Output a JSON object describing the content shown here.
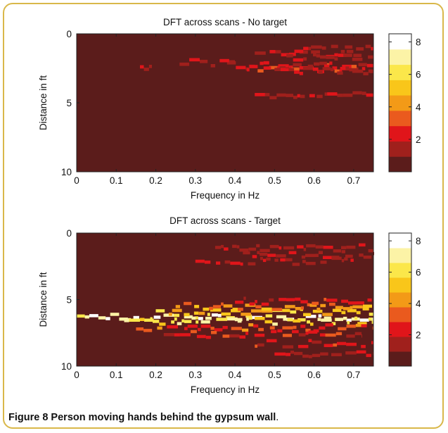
{
  "colors": {
    "frame_border": "#d9b84a",
    "hot_colormap": [
      "#5b1c1b",
      "#a0201c",
      "#e0151a",
      "#ea5a1e",
      "#f39a17",
      "#f9c61a",
      "#fbe74a",
      "#fcf3a6",
      "#ffffff"
    ]
  },
  "caption": {
    "label": "Figure 8",
    "text": " Person moving hands behind the gypsum wall",
    "period": "."
  },
  "chart_data": [
    {
      "type": "heatmap",
      "title": "DFT across scans - No target",
      "xlabel": "Frequency in Hz",
      "ylabel": "Distance in ft",
      "xlim": [
        0,
        0.75
      ],
      "ylim": [
        0,
        10
      ],
      "y_reversed": true,
      "xticks": [
        "0",
        "0.1",
        "0.2",
        "0.3",
        "0.4",
        "0.5",
        "0.6",
        "0.7"
      ],
      "yticks": [
        "0",
        "5",
        "10"
      ],
      "colorbar": {
        "ticks": [
          "2",
          "4",
          "6",
          "8"
        ],
        "range": [
          0,
          8.5
        ],
        "levels": 9
      },
      "background_value": 0,
      "streaks": [
        {
          "y": 2.2,
          "x0": 0.38,
          "x1": 0.75,
          "value": 2
        },
        {
          "y": 2.4,
          "x0": 0.43,
          "x1": 0.75,
          "value": 2
        },
        {
          "y": 1.3,
          "x0": 0.45,
          "x1": 0.72,
          "value": 1
        },
        {
          "y": 1.6,
          "x0": 0.53,
          "x1": 0.75,
          "value": 1
        },
        {
          "y": 2.6,
          "x0": 0.5,
          "x1": 0.75,
          "value": 1
        },
        {
          "y": 2.0,
          "x0": 0.26,
          "x1": 0.4,
          "value": 1
        },
        {
          "y": 2.4,
          "x0": 0.16,
          "x1": 0.19,
          "value": 1
        },
        {
          "y": 4.3,
          "x0": 0.45,
          "x1": 0.75,
          "value": 1
        },
        {
          "y": 1.0,
          "x0": 0.55,
          "x1": 0.75,
          "value": 1
        }
      ]
    },
    {
      "type": "heatmap",
      "title": "DFT across scans - Target",
      "xlabel": "Frequency in Hz",
      "ylabel": "Distance in ft",
      "xlim": [
        0,
        0.75
      ],
      "ylim": [
        0,
        10
      ],
      "y_reversed": true,
      "xticks": [
        "0",
        "0.1",
        "0.2",
        "0.3",
        "0.4",
        "0.5",
        "0.6",
        "0.7"
      ],
      "yticks": [
        "0",
        "5",
        "10"
      ],
      "colorbar": {
        "ticks": [
          "2",
          "4",
          "6",
          "8"
        ],
        "range": [
          0,
          8.5
        ],
        "levels": 9
      },
      "background_value": 0,
      "streaks": [
        {
          "y": 6.2,
          "x0": 0.0,
          "x1": 0.75,
          "value": 8
        },
        {
          "y": 6.5,
          "x0": 0.12,
          "x1": 0.75,
          "value": 6
        },
        {
          "y": 5.8,
          "x0": 0.2,
          "x1": 0.75,
          "value": 5
        },
        {
          "y": 5.4,
          "x0": 0.25,
          "x1": 0.75,
          "value": 4
        },
        {
          "y": 7.0,
          "x0": 0.15,
          "x1": 0.75,
          "value": 3
        },
        {
          "y": 7.5,
          "x0": 0.22,
          "x1": 0.72,
          "value": 2
        },
        {
          "y": 5.0,
          "x0": 0.4,
          "x1": 0.75,
          "value": 2
        },
        {
          "y": 8.2,
          "x0": 0.45,
          "x1": 0.75,
          "value": 2
        },
        {
          "y": 1.0,
          "x0": 0.35,
          "x1": 0.75,
          "value": 1
        },
        {
          "y": 1.5,
          "x0": 0.42,
          "x1": 0.75,
          "value": 1
        },
        {
          "y": 2.0,
          "x0": 0.3,
          "x1": 0.7,
          "value": 1
        },
        {
          "y": 9.0,
          "x0": 0.5,
          "x1": 0.75,
          "value": 1
        }
      ]
    }
  ]
}
